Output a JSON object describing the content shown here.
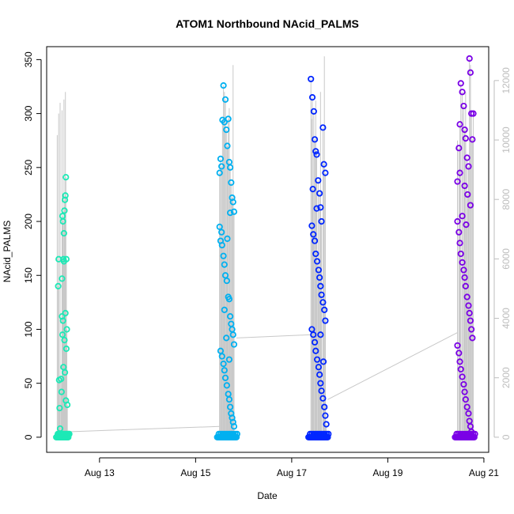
{
  "chart_data": {
    "type": "scatter",
    "title": "ATOM1 Northbound NAcid_PALMS",
    "xlabel": "Date",
    "ylabel": "NAcid_PALMS",
    "x_ticks": [
      "Aug 13",
      "Aug 15",
      "Aug 17",
      "Aug 19",
      "Aug 21"
    ],
    "x_tick_days": [
      13,
      15,
      17,
      19,
      21
    ],
    "xlim_days": [
      11.9,
      21.1
    ],
    "ylim": [
      -14,
      362
    ],
    "y_ticks": [
      0,
      50,
      100,
      150,
      200,
      250,
      300,
      350
    ],
    "right_axis": {
      "ylim": [
        -508,
        13140
      ],
      "ticks": [
        0,
        2000,
        4000,
        6000,
        8000,
        10000,
        12000
      ],
      "color": "#bdbdbd"
    },
    "trace_color": "#c8c8c8",
    "grid": false,
    "legend": "none",
    "series": [
      {
        "color": "#1de9b6",
        "x_range": [
          12.1,
          12.35
        ],
        "points": [
          [
            12.14,
            140
          ],
          [
            12.15,
            165
          ],
          [
            12.16,
            53
          ],
          [
            12.17,
            27
          ],
          [
            12.18,
            8
          ],
          [
            12.19,
            3
          ],
          [
            12.2,
            54
          ],
          [
            12.21,
            42
          ],
          [
            12.22,
            112
          ],
          [
            12.23,
            95
          ],
          [
            12.24,
            200
          ],
          [
            12.25,
            165
          ],
          [
            12.26,
            189
          ],
          [
            12.27,
            210
          ],
          [
            12.28,
            220
          ],
          [
            12.29,
            224
          ],
          [
            12.3,
            241
          ],
          [
            12.31,
            82
          ],
          [
            12.32,
            100
          ],
          [
            12.33,
            30
          ],
          [
            12.22,
            147
          ],
          [
            12.24,
            108
          ],
          [
            12.25,
            65
          ],
          [
            12.27,
            90
          ],
          [
            12.28,
            60
          ],
          [
            12.3,
            34
          ],
          [
            12.31,
            165
          ],
          [
            12.23,
            205
          ],
          [
            12.26,
            163
          ],
          [
            12.29,
            115
          ]
        ],
        "trace_peaks": [
          [
            12.12,
            280
          ],
          [
            12.15,
            300
          ],
          [
            12.18,
            310
          ],
          [
            12.22,
            303
          ],
          [
            12.26,
            313
          ],
          [
            12.29,
            320
          ]
        ]
      },
      {
        "color": "#00b0f0",
        "x_range": [
          15.45,
          15.85
        ],
        "points": [
          [
            15.5,
            245
          ],
          [
            15.52,
            258
          ],
          [
            15.54,
            251
          ],
          [
            15.56,
            294
          ],
          [
            15.58,
            326
          ],
          [
            15.6,
            292
          ],
          [
            15.62,
            313
          ],
          [
            15.64,
            285
          ],
          [
            15.66,
            270
          ],
          [
            15.68,
            295
          ],
          [
            15.7,
            255
          ],
          [
            15.72,
            250
          ],
          [
            15.74,
            236
          ],
          [
            15.76,
            222
          ],
          [
            15.78,
            218
          ],
          [
            15.8,
            209
          ],
          [
            15.5,
            195
          ],
          [
            15.52,
            182
          ],
          [
            15.55,
            178
          ],
          [
            15.58,
            168
          ],
          [
            15.6,
            160
          ],
          [
            15.62,
            150
          ],
          [
            15.65,
            145
          ],
          [
            15.68,
            130
          ],
          [
            15.7,
            128
          ],
          [
            15.72,
            112
          ],
          [
            15.74,
            105
          ],
          [
            15.76,
            100
          ],
          [
            15.78,
            95
          ],
          [
            15.8,
            86
          ],
          [
            15.52,
            80
          ],
          [
            15.55,
            75
          ],
          [
            15.58,
            68
          ],
          [
            15.6,
            62
          ],
          [
            15.62,
            55
          ],
          [
            15.65,
            48
          ],
          [
            15.68,
            40
          ],
          [
            15.7,
            35
          ],
          [
            15.72,
            28
          ],
          [
            15.74,
            22
          ],
          [
            15.76,
            18
          ],
          [
            15.78,
            14
          ],
          [
            15.8,
            10
          ],
          [
            15.54,
            190
          ],
          [
            15.66,
            184
          ],
          [
            15.72,
            208
          ],
          [
            15.6,
            118
          ],
          [
            15.64,
            92
          ],
          [
            15.7,
            72
          ]
        ],
        "trace_peaks": [
          [
            15.6,
            320
          ],
          [
            15.7,
            305
          ],
          [
            15.78,
            345
          ]
        ]
      },
      {
        "color": "#0026ff",
        "x_range": [
          17.35,
          17.75
        ],
        "points": [
          [
            17.4,
            332
          ],
          [
            17.43,
            315
          ],
          [
            17.46,
            302
          ],
          [
            17.48,
            276
          ],
          [
            17.5,
            265
          ],
          [
            17.52,
            262
          ],
          [
            17.55,
            238
          ],
          [
            17.58,
            226
          ],
          [
            17.6,
            213
          ],
          [
            17.62,
            200
          ],
          [
            17.65,
            287
          ],
          [
            17.67,
            253
          ],
          [
            17.7,
            245
          ],
          [
            17.42,
            196
          ],
          [
            17.45,
            188
          ],
          [
            17.48,
            182
          ],
          [
            17.5,
            170
          ],
          [
            17.53,
            163
          ],
          [
            17.56,
            155
          ],
          [
            17.58,
            148
          ],
          [
            17.6,
            140
          ],
          [
            17.62,
            132
          ],
          [
            17.65,
            125
          ],
          [
            17.68,
            118
          ],
          [
            17.7,
            108
          ],
          [
            17.42,
            100
          ],
          [
            17.45,
            95
          ],
          [
            17.48,
            88
          ],
          [
            17.5,
            80
          ],
          [
            17.53,
            72
          ],
          [
            17.56,
            65
          ],
          [
            17.58,
            58
          ],
          [
            17.6,
            50
          ],
          [
            17.62,
            43
          ],
          [
            17.65,
            36
          ],
          [
            17.68,
            28
          ],
          [
            17.7,
            20
          ],
          [
            17.72,
            12
          ],
          [
            17.44,
            230
          ],
          [
            17.52,
            212
          ],
          [
            17.6,
            95
          ],
          [
            17.66,
            70
          ]
        ],
        "trace_peaks": [
          [
            17.42,
            295
          ],
          [
            17.5,
            312
          ],
          [
            17.6,
            320
          ],
          [
            17.68,
            353
          ]
        ]
      },
      {
        "color": "#7a00e6",
        "x_range": [
          20.4,
          20.8
        ],
        "points": [
          [
            20.45,
            237
          ],
          [
            20.48,
            268
          ],
          [
            20.5,
            290
          ],
          [
            20.52,
            328
          ],
          [
            20.55,
            320
          ],
          [
            20.58,
            307
          ],
          [
            20.6,
            285
          ],
          [
            20.62,
            277
          ],
          [
            20.65,
            259
          ],
          [
            20.68,
            251
          ],
          [
            20.7,
            351
          ],
          [
            20.72,
            338
          ],
          [
            20.74,
            300
          ],
          [
            20.76,
            276
          ],
          [
            20.45,
            200
          ],
          [
            20.48,
            190
          ],
          [
            20.5,
            180
          ],
          [
            20.52,
            170
          ],
          [
            20.55,
            162
          ],
          [
            20.58,
            155
          ],
          [
            20.6,
            148
          ],
          [
            20.62,
            140
          ],
          [
            20.65,
            130
          ],
          [
            20.68,
            122
          ],
          [
            20.7,
            115
          ],
          [
            20.72,
            108
          ],
          [
            20.74,
            100
          ],
          [
            20.76,
            92
          ],
          [
            20.45,
            85
          ],
          [
            20.48,
            78
          ],
          [
            20.5,
            70
          ],
          [
            20.52,
            63
          ],
          [
            20.55,
            56
          ],
          [
            20.58,
            49
          ],
          [
            20.6,
            42
          ],
          [
            20.62,
            35
          ],
          [
            20.65,
            28
          ],
          [
            20.68,
            22
          ],
          [
            20.7,
            15
          ],
          [
            20.72,
            10
          ],
          [
            20.74,
            5
          ],
          [
            20.5,
            245
          ],
          [
            20.6,
            233
          ],
          [
            20.66,
            225
          ],
          [
            20.72,
            215
          ],
          [
            20.55,
            205
          ],
          [
            20.63,
            197
          ],
          [
            20.78,
            300
          ]
        ],
        "trace_peaks": [
          [
            20.45,
            275
          ],
          [
            20.55,
            300
          ],
          [
            20.62,
            320
          ],
          [
            20.72,
            345
          ]
        ]
      }
    ],
    "connectors": [
      [
        [
          12.3,
          5
        ],
        [
          15.5,
          10
        ]
      ],
      [
        [
          15.85,
          92
        ],
        [
          17.4,
          95
        ]
      ],
      [
        [
          17.75,
          35
        ],
        [
          20.45,
          97
        ]
      ]
    ]
  }
}
